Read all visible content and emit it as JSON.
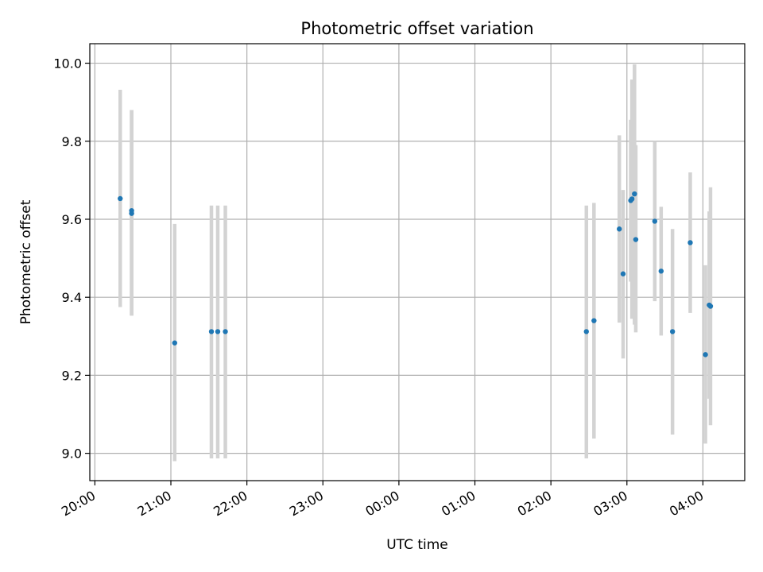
{
  "chart_data": {
    "type": "scatter",
    "title": "Photometric offset variation",
    "xlabel": "UTC time",
    "ylabel": "Photometric offset",
    "x_tick_labels": [
      "20:00",
      "21:00",
      "22:00",
      "23:00",
      "00:00",
      "01:00",
      "02:00",
      "03:00",
      "04:00"
    ],
    "y_tick_labels": [
      "9.0",
      "9.2",
      "9.4",
      "9.6",
      "9.8",
      "10.0"
    ],
    "xlim": [
      "19:56",
      "04:33"
    ],
    "ylim": [
      8.93,
      10.05
    ],
    "grid": true,
    "colors": {
      "points": "#1f77b4",
      "errorbars": "#d3d3d3",
      "grid": "#b0b0b0"
    },
    "points": [
      {
        "time": "20:20",
        "y": 9.653,
        "yerr_low": 9.375,
        "yerr_high": 9.932
      },
      {
        "time": "20:29",
        "y": 9.622,
        "yerr_low": 9.353,
        "yerr_high": 9.88
      },
      {
        "time": "20:29",
        "y": 9.615,
        "yerr_low": 9.353,
        "yerr_high": 9.88
      },
      {
        "time": "21:03",
        "y": 9.283,
        "yerr_low": 8.98,
        "yerr_high": 9.588
      },
      {
        "time": "21:32",
        "y": 9.312,
        "yerr_low": 8.987,
        "yerr_high": 9.635
      },
      {
        "time": "21:37",
        "y": 9.312,
        "yerr_low": 8.987,
        "yerr_high": 9.635
      },
      {
        "time": "21:43",
        "y": 9.312,
        "yerr_low": 8.987,
        "yerr_high": 9.635
      },
      {
        "time": "02:28",
        "y": 9.312,
        "yerr_low": 8.987,
        "yerr_high": 9.635
      },
      {
        "time": "02:34",
        "y": 9.34,
        "yerr_low": 9.038,
        "yerr_high": 9.642
      },
      {
        "time": "02:54",
        "y": 9.575,
        "yerr_low": 9.335,
        "yerr_high": 9.815
      },
      {
        "time": "02:57",
        "y": 9.46,
        "yerr_low": 9.243,
        "yerr_high": 9.675
      },
      {
        "time": "03:03",
        "y": 9.648,
        "yerr_low": 9.44,
        "yerr_high": 9.855
      },
      {
        "time": "03:04",
        "y": 9.652,
        "yerr_low": 9.345,
        "yerr_high": 9.958
      },
      {
        "time": "03:06",
        "y": 9.665,
        "yerr_low": 9.33,
        "yerr_high": 9.997
      },
      {
        "time": "03:07",
        "y": 9.548,
        "yerr_low": 9.31,
        "yerr_high": 9.79
      },
      {
        "time": "03:22",
        "y": 9.595,
        "yerr_low": 9.39,
        "yerr_high": 9.8
      },
      {
        "time": "03:27",
        "y": 9.467,
        "yerr_low": 9.302,
        "yerr_high": 9.632
      },
      {
        "time": "03:36",
        "y": 9.312,
        "yerr_low": 9.048,
        "yerr_high": 9.575
      },
      {
        "time": "03:50",
        "y": 9.54,
        "yerr_low": 9.36,
        "yerr_high": 9.72
      },
      {
        "time": "04:02",
        "y": 9.253,
        "yerr_low": 9.025,
        "yerr_high": 9.482
      },
      {
        "time": "04:05",
        "y": 9.38,
        "yerr_low": 9.14,
        "yerr_high": 9.62
      },
      {
        "time": "04:06",
        "y": 9.377,
        "yerr_low": 9.072,
        "yerr_high": 9.682
      }
    ]
  }
}
